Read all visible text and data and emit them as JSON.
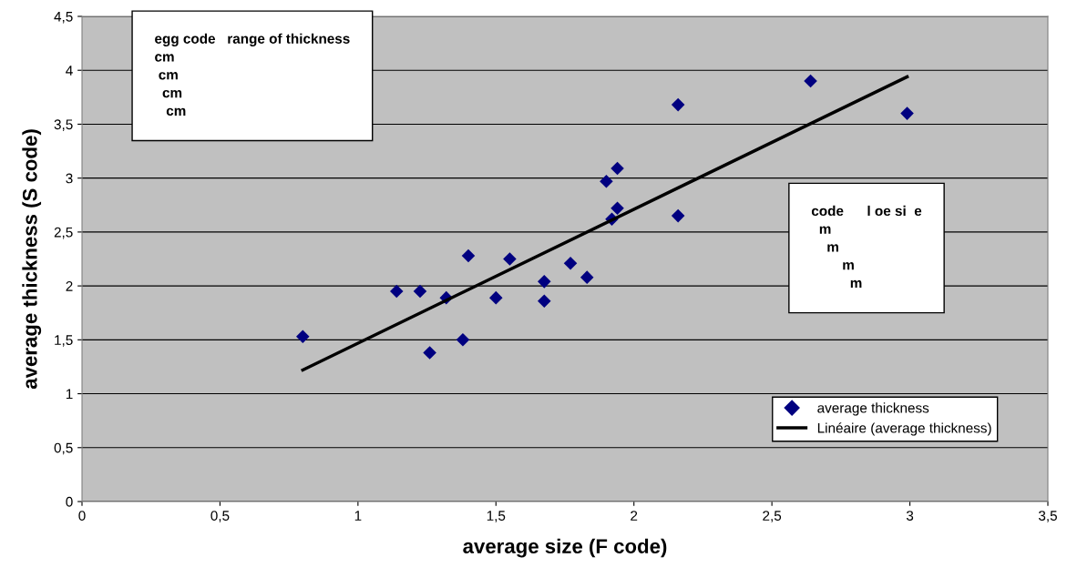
{
  "chart_data": {
    "type": "scatter",
    "xlabel": "average size (F code)",
    "ylabel": "average thickness (S code)",
    "x": [
      0.8,
      1.14,
      1.225,
      1.26,
      1.32,
      1.38,
      1.4,
      1.5,
      1.55,
      1.675,
      1.675,
      1.77,
      1.83,
      1.9,
      1.92,
      1.94,
      1.94,
      2.16,
      2.16,
      2.64,
      2.99
    ],
    "series": [
      {
        "name": "average thickness",
        "color": "#000080",
        "marker": "diamond",
        "values": [
          1.53,
          1.95,
          1.95,
          1.38,
          1.89,
          1.5,
          2.28,
          1.89,
          2.25,
          2.04,
          1.86,
          2.21,
          2.08,
          2.97,
          2.62,
          2.72,
          3.09,
          3.68,
          2.65,
          3.9,
          3.6
        ]
      },
      {
        "name": "Linéaire (average thickness)",
        "type": "line",
        "color": "#000000",
        "line_style": "solid",
        "marker": "none",
        "x": [
          0.8,
          2.99
        ],
        "values": [
          1.22,
          3.94
        ]
      }
    ],
    "annotations": [
      "egg code   range of thickness\ncm\n cm\n  cm\n   cm",
      "code      l oe si  e\n  m\n    m\n        m\n          m"
    ],
    "xlim": [
      0,
      3.5
    ],
    "xticks": [
      {
        "value": 0,
        "label": "0"
      },
      {
        "value": 0.5,
        "label": "0,5"
      },
      {
        "value": 1,
        "label": "1"
      },
      {
        "value": 1.5,
        "label": "1,5"
      },
      {
        "value": 2,
        "label": "2"
      },
      {
        "value": 2.5,
        "label": "2,5"
      },
      {
        "value": 3,
        "label": "3"
      },
      {
        "value": 3.5,
        "label": "3,5"
      }
    ],
    "ylim": [
      0,
      4.5
    ],
    "yticks": [
      {
        "value": 0,
        "label": "0"
      },
      {
        "value": 0.5,
        "label": "0,5"
      },
      {
        "value": 1,
        "label": "1"
      },
      {
        "value": 1.5,
        "label": "1,5"
      },
      {
        "value": 2,
        "label": "2"
      },
      {
        "value": 2.5,
        "label": "2,5"
      },
      {
        "value": 3,
        "label": "3"
      },
      {
        "value": 3.5,
        "label": "3,5"
      },
      {
        "value": 4,
        "label": "4"
      },
      {
        "value": 4.5,
        "label": "4,5"
      }
    ],
    "grid": "y",
    "legend": "bottom right"
  }
}
